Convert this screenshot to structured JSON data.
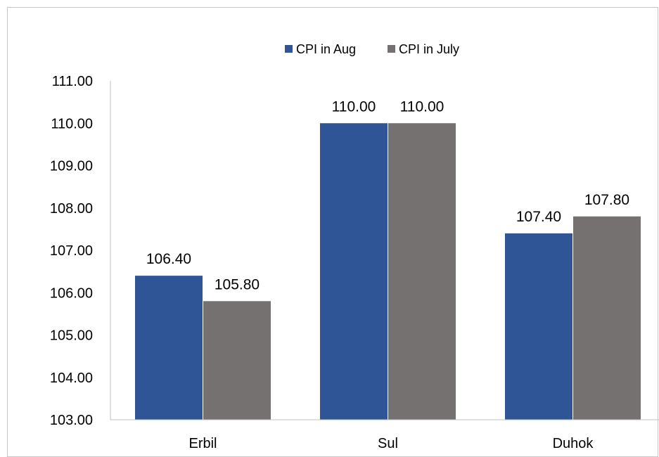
{
  "chart_data": {
    "type": "bar",
    "categories": [
      "Erbil",
      "Sul",
      "Duhok"
    ],
    "series": [
      {
        "name": "CPI in Aug",
        "values": [
          106.4,
          110.0,
          107.4
        ],
        "color": "#2F5597"
      },
      {
        "name": "CPI in July",
        "values": [
          105.8,
          110.0,
          107.8
        ],
        "color": "#767171"
      }
    ],
    "ylim": [
      103,
      111
    ],
    "yticks": [
      "103.00",
      "104.00",
      "105.00",
      "106.00",
      "107.00",
      "108.00",
      "109.00",
      "110.00",
      "111.00"
    ],
    "data_labels": [
      [
        "106.40",
        "110.00",
        "107.40"
      ],
      [
        "105.80",
        "110.00",
        "107.80"
      ]
    ],
    "grid": false,
    "legend_position": "top"
  }
}
